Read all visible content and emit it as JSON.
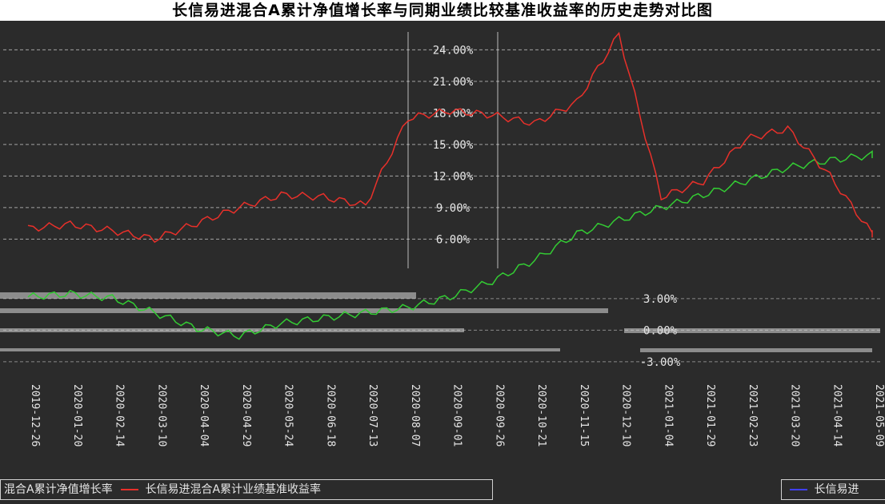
{
  "chart_data": {
    "type": "line",
    "title": "长信易进混合A累计净值增长率与同期业绩比较基准收益率的历史走势对比图",
    "y_ticks": [
      "24.00%",
      "21.00%",
      "18.00%",
      "15.00%",
      "12.00%",
      "9.00%",
      "6.00%"
    ],
    "y_ticks_lower": [
      "3.00%",
      "0.00%",
      "-3.00%"
    ],
    "x_ticks": [
      "2019-12-26",
      "2020-01-20",
      "2020-02-14",
      "2020-03-10",
      "2020-04-04",
      "2020-04-29",
      "2020-05-24",
      "2020-06-18",
      "2020-07-13",
      "2020-08-07",
      "2020-09-01",
      "2020-09-26",
      "2020-10-21",
      "2020-11-15",
      "2020-12-10",
      "2021-01-04",
      "2021-01-29",
      "2021-02-23",
      "2021-03-20",
      "2021-04-14",
      "2021-05-09"
    ],
    "series": [
      {
        "name": "长信易进混合A累计净值增长率",
        "color": "#33cc33",
        "values": [
          0.5,
          0.8,
          0.4,
          -1.0,
          -2.5,
          -3.2,
          -2.0,
          -1.5,
          -1.0,
          -0.5,
          0.5,
          2.0,
          4.0,
          6.5,
          7.8,
          9.0,
          10.2,
          11.5,
          12.8,
          13.5,
          14.0
        ]
      },
      {
        "name": "长信易进混合A累计业绩基准收益率",
        "color": "#e8302a",
        "values": [
          7.0,
          7.4,
          6.8,
          6.0,
          7.5,
          9.0,
          10.2,
          10.0,
          9.2,
          17.5,
          18.2,
          17.8,
          17.0,
          19.0,
          25.5,
          10.0,
          11.5,
          15.5,
          16.5,
          12.0,
          6.5
        ]
      },
      {
        "name": "长信易进混合A累计净值增长率",
        "color": "#4040ff",
        "values": []
      }
    ],
    "legend": {
      "left_text": "混合A累计净值增长率",
      "middle_text": "长信易进混合A累计业绩基准收益率",
      "right_text": "长信易进"
    },
    "grid": true,
    "colors": {
      "background": "#2b2b2b",
      "grid": "#d8d8d8",
      "text": "#e6e6e6"
    }
  }
}
